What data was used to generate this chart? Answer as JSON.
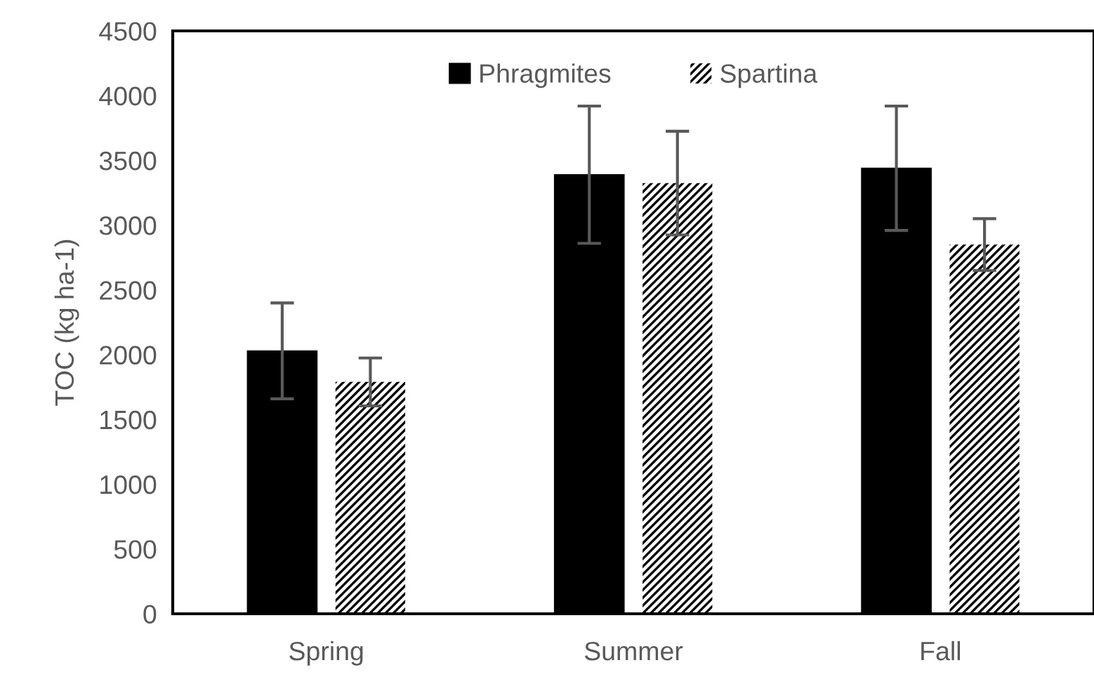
{
  "chart_data": {
    "type": "bar",
    "ylabel": "TOC (kg ha-1)",
    "categories": [
      "Spring",
      "Summer",
      "Fall"
    ],
    "series": [
      {
        "name": "Phragmites",
        "color": "#000000",
        "values": [
          2030,
          3390,
          3440
        ],
        "errors": [
          370,
          530,
          480
        ]
      },
      {
        "name": "Spartina",
        "color": "#000000",
        "values": [
          1790,
          3325,
          2850
        ],
        "errors": [
          185,
          400,
          200
        ]
      }
    ],
    "ylim": [
      0,
      4500
    ],
    "yticks": [
      0,
      500,
      1000,
      1500,
      2000,
      2500,
      3000,
      3500,
      4000,
      4500
    ],
    "grid": false,
    "legend": "top"
  }
}
